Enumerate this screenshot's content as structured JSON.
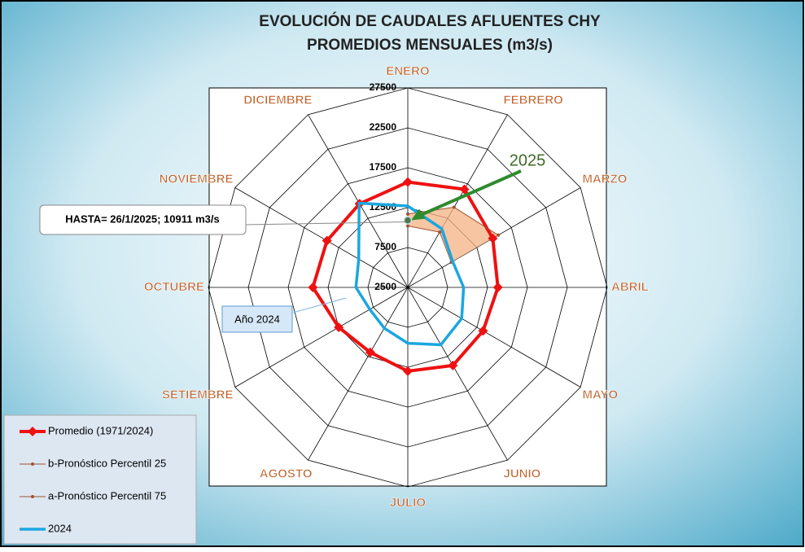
{
  "chart_data": {
    "type": "radar",
    "title": "EVOLUCIÓN DE CAUDALES AFLUENTES CHY",
    "subtitle": "PROMEDIOS MENSUALES (m3/s)",
    "categories": [
      "ENERO",
      "FEBRERO",
      "MARZO",
      "ABRIL",
      "MAYO",
      "JUNIO",
      "JULIO",
      "AGOSTO",
      "SETIEMBRE",
      "OCTUBRE",
      "NOVIEMBRE",
      "DICIEMBRE"
    ],
    "ylim": [
      2500,
      27500
    ],
    "yticks": [
      2500,
      7500,
      12500,
      17500,
      22500,
      27500
    ],
    "grid": true,
    "legend": "bottom-left",
    "series": [
      {
        "name": "Promedio (1971/2024)",
        "color": "#ee1111",
        "values": [
          15700,
          16700,
          14800,
          13800,
          13400,
          13800,
          13000,
          11900,
          12500,
          14400,
          14200,
          14600
        ]
      },
      {
        "name": "b-Pronóstico Percentil 25",
        "color": "#a0522d",
        "values": [
          10200,
          10500,
          8800,
          null,
          null,
          null,
          null,
          null,
          null,
          null,
          null,
          null
        ]
      },
      {
        "name": "a-Pronóstico Percentil 75",
        "color": "#a0522d",
        "values": [
          11700,
          14100,
          15600,
          null,
          null,
          null,
          null,
          null,
          null,
          null,
          null,
          null
        ]
      },
      {
        "name": "2024",
        "color": "#1aa7e0",
        "values": [
          12700,
          11000,
          9000,
          9500,
          10300,
          10800,
          9500,
          8400,
          8000,
          9000,
          9600,
          14700
        ]
      }
    ],
    "point": {
      "label": "2025",
      "value": 10911,
      "color": "#2e8b2e"
    },
    "annotations": [
      "HASTA= 26/1/2025; 10911 m3/s",
      "Año 2024"
    ]
  }
}
